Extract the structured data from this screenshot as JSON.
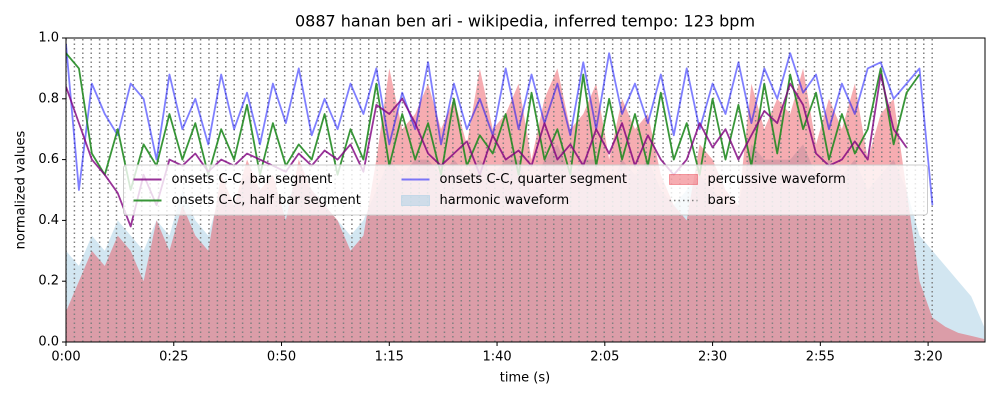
{
  "chart_data": {
    "type": "line",
    "title": "0887 hanan ben ari - wikipedia, inferred tempo: 123 bpm",
    "xlabel": "time (s)",
    "ylabel": "normalized values",
    "xlim": [
      0,
      213.2
    ],
    "ylim": [
      0,
      1
    ],
    "xticks": [
      {
        "value": 0,
        "label": "0:00"
      },
      {
        "value": 25,
        "label": "0:25"
      },
      {
        "value": 50,
        "label": "0:50"
      },
      {
        "value": 75,
        "label": "1:15"
      },
      {
        "value": 100,
        "label": "1:40"
      },
      {
        "value": 125,
        "label": "2:05"
      },
      {
        "value": 150,
        "label": "2:30"
      },
      {
        "value": 175,
        "label": "2:55"
      },
      {
        "value": 200,
        "label": "3:20"
      }
    ],
    "yticks": [
      {
        "value": 0,
        "label": "0.0"
      },
      {
        "value": 0.2,
        "label": "0.2"
      },
      {
        "value": 0.4,
        "label": "0.4"
      },
      {
        "value": 0.6,
        "label": "0.6"
      },
      {
        "value": 0.8,
        "label": "0.8"
      },
      {
        "value": 1,
        "label": "1.0"
      }
    ],
    "legend": "center",
    "x": [
      0,
      3,
      6,
      9,
      12,
      15,
      18,
      21,
      24,
      27,
      30,
      33,
      36,
      39,
      42,
      45,
      48,
      51,
      54,
      57,
      60,
      63,
      66,
      69,
      72,
      75,
      78,
      81,
      84,
      87,
      90,
      93,
      96,
      99,
      102,
      105,
      108,
      111,
      114,
      117,
      120,
      123,
      126,
      129,
      132,
      135,
      138,
      141,
      144,
      147,
      150,
      153,
      156,
      159,
      162,
      165,
      168,
      171,
      174,
      177,
      180,
      183,
      186,
      189,
      192,
      195,
      198,
      201,
      204,
      207,
      210,
      213
    ],
    "series": [
      {
        "name": "onsets C-C, bar segment",
        "style": "line",
        "color": "#800080cc",
        "values": [
          0.84,
          0.72,
          0.6,
          0.55,
          0.49,
          0.38,
          0.55,
          0.45,
          0.6,
          0.58,
          0.62,
          0.56,
          0.6,
          0.58,
          0.62,
          0.6,
          0.58,
          0.56,
          0.62,
          0.58,
          0.63,
          0.6,
          0.65,
          0.56,
          0.78,
          0.75,
          0.8,
          0.72,
          0.62,
          0.58,
          0.62,
          0.66,
          0.55,
          0.68,
          0.6,
          0.63,
          0.58,
          0.72,
          0.6,
          0.65,
          0.58,
          0.7,
          0.62,
          0.72,
          0.58,
          0.68,
          0.6,
          0.55,
          0.6,
          0.72,
          0.64,
          0.7,
          0.6,
          0.68,
          0.76,
          0.72,
          0.85,
          0.78,
          0.62,
          0.58,
          0.6,
          0.66,
          0.6,
          0.88,
          0.7,
          0.64,
          null,
          null,
          null,
          null,
          null,
          null
        ]
      },
      {
        "name": "onsets C-C, half bar segment",
        "style": "line",
        "color": "#228b22e6",
        "values": [
          0.95,
          0.9,
          0.62,
          0.55,
          0.7,
          0.5,
          0.65,
          0.58,
          0.75,
          0.6,
          0.72,
          0.55,
          0.7,
          0.6,
          0.78,
          0.55,
          0.72,
          0.58,
          0.65,
          0.6,
          0.75,
          0.55,
          0.7,
          0.6,
          0.85,
          0.58,
          0.75,
          0.6,
          0.72,
          0.55,
          0.8,
          0.58,
          0.68,
          0.62,
          0.75,
          0.55,
          0.82,
          0.6,
          0.7,
          0.55,
          0.88,
          0.58,
          0.8,
          0.6,
          0.75,
          0.58,
          0.82,
          0.6,
          0.72,
          0.55,
          0.8,
          0.6,
          0.78,
          0.58,
          0.85,
          0.62,
          0.88,
          0.7,
          0.82,
          0.6,
          0.75,
          0.62,
          0.7,
          0.9,
          0.65,
          0.82,
          0.88,
          null,
          null,
          null,
          null,
          null
        ]
      },
      {
        "name": "onsets C-C, quarter segment",
        "style": "line",
        "color": "#0000ff80",
        "values": [
          0.98,
          0.5,
          0.85,
          0.75,
          0.68,
          0.85,
          0.8,
          0.6,
          0.88,
          0.7,
          0.8,
          0.65,
          0.88,
          0.7,
          0.82,
          0.65,
          0.85,
          0.72,
          0.9,
          0.68,
          0.8,
          0.7,
          0.85,
          0.75,
          0.9,
          0.65,
          0.82,
          0.7,
          0.92,
          0.65,
          0.85,
          0.7,
          0.8,
          0.68,
          0.9,
          0.7,
          0.88,
          0.72,
          0.85,
          0.68,
          0.92,
          0.7,
          0.95,
          0.75,
          0.85,
          0.72,
          0.88,
          0.68,
          0.9,
          0.7,
          0.85,
          0.75,
          0.92,
          0.72,
          0.9,
          0.8,
          0.95,
          0.82,
          0.88,
          0.7,
          0.85,
          0.75,
          0.9,
          0.92,
          0.8,
          0.85,
          0.9,
          0.45,
          null,
          null,
          null,
          null
        ]
      },
      {
        "name": "harmonic waveform",
        "style": "area",
        "color": "#a6cee380",
        "values": [
          0.3,
          0.25,
          0.35,
          0.3,
          0.4,
          0.35,
          0.3,
          0.4,
          0.35,
          0.5,
          0.4,
          0.35,
          0.5,
          0.45,
          0.55,
          0.5,
          0.5,
          0.45,
          0.55,
          0.5,
          0.45,
          0.4,
          0.35,
          0.4,
          0.5,
          0.6,
          0.55,
          0.6,
          0.6,
          0.55,
          0.6,
          0.55,
          0.6,
          0.55,
          0.6,
          0.6,
          0.5,
          0.6,
          0.65,
          0.55,
          0.6,
          0.6,
          0.5,
          0.6,
          0.55,
          0.6,
          0.5,
          0.45,
          0.5,
          0.55,
          0.5,
          0.45,
          0.45,
          0.65,
          0.6,
          0.6,
          0.6,
          0.65,
          0.55,
          0.6,
          0.55,
          0.6,
          0.5,
          0.55,
          0.6,
          0.5,
          0.35,
          0.3,
          0.25,
          0.2,
          0.15,
          0.05
        ]
      },
      {
        "name": "percussive waveform",
        "style": "area",
        "color": "#e8303c66",
        "values": [
          0.1,
          0.2,
          0.3,
          0.25,
          0.35,
          0.3,
          0.2,
          0.4,
          0.3,
          0.45,
          0.35,
          0.3,
          0.55,
          0.45,
          0.6,
          0.5,
          0.55,
          0.4,
          0.6,
          0.5,
          0.45,
          0.4,
          0.3,
          0.35,
          0.6,
          0.9,
          0.7,
          0.75,
          0.85,
          0.7,
          0.8,
          0.65,
          0.9,
          0.7,
          0.75,
          0.85,
          0.6,
          0.8,
          0.9,
          0.7,
          0.75,
          0.85,
          0.6,
          0.8,
          0.7,
          0.75,
          0.55,
          0.45,
          0.4,
          0.65,
          0.6,
          0.5,
          0.45,
          0.85,
          0.7,
          0.8,
          0.75,
          0.9,
          0.65,
          0.8,
          0.7,
          0.85,
          0.6,
          0.75,
          0.8,
          0.5,
          0.2,
          0.08,
          0.05,
          0.03,
          0.02,
          0.01
        ]
      },
      {
        "name": "bars",
        "style": "vlines",
        "color": "#808080",
        "x": [
          0,
          1.95,
          3.9,
          5.85,
          7.8,
          9.76,
          11.71,
          13.66,
          15.61,
          17.56,
          19.51,
          21.46,
          23.41,
          25.36,
          27.31,
          29.27,
          31.22,
          33.17,
          35.12,
          37.07,
          39.02,
          40.97,
          42.92,
          44.87,
          46.82,
          48.78,
          50.73,
          52.68,
          54.63,
          56.58,
          58.53,
          60.48,
          62.43,
          64.38,
          66.33,
          68.29,
          70.24,
          72.19,
          74.14,
          76.09,
          78.04,
          79.99,
          81.94,
          83.89,
          85.84,
          87.8,
          89.75,
          91.7,
          93.65,
          95.6,
          97.55,
          99.5,
          101.45,
          103.4,
          105.35,
          107.31,
          109.26,
          111.21,
          113.16,
          115.11,
          117.06,
          119.01,
          120.96,
          122.91,
          124.86,
          126.82,
          128.77,
          130.72,
          132.67,
          134.62,
          136.57,
          138.52,
          140.47,
          142.42,
          144.37,
          146.33,
          148.28,
          150.23,
          152.18,
          154.13,
          156.08,
          158.03,
          159.98,
          161.93,
          163.88,
          165.84,
          167.79,
          169.74,
          171.69,
          173.64,
          175.59,
          177.54,
          179.49,
          181.44,
          183.39,
          185.35,
          187.3,
          189.25,
          191.2,
          193.15,
          195.1,
          197.05,
          199,
          200.95
        ]
      }
    ]
  }
}
